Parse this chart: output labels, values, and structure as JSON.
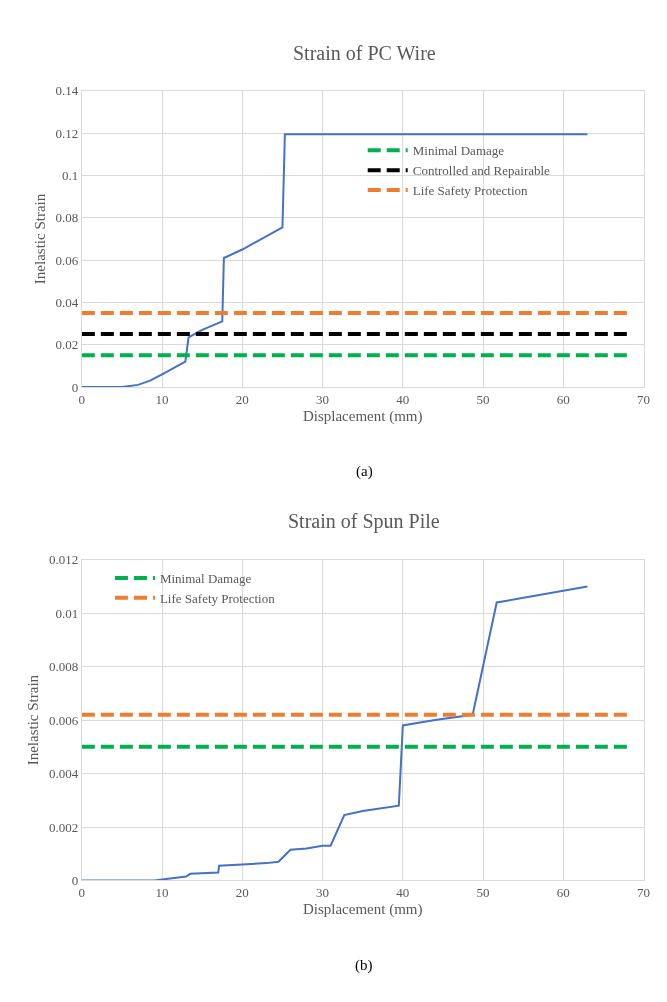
{
  "chart_data": [
    {
      "type": "line",
      "title": "Strain of PC Wire",
      "xlabel": "Displacement (mm)",
      "ylabel": "Inelastic Strain",
      "annotations": [
        "(a)"
      ],
      "xlim": [
        0,
        70
      ],
      "xticks": [
        0,
        10,
        20,
        30,
        40,
        50,
        60,
        70
      ],
      "ylim": [
        0,
        0.14
      ],
      "yticks": [
        0,
        0.02,
        0.04,
        0.06,
        0.08,
        0.1,
        0.12,
        0.14
      ],
      "grid": true,
      "legend": "right",
      "marker": "none",
      "series": [
        {
          "color": "#4472c4",
          "line_style": "solid",
          "x": [
            0,
            5,
            7,
            8.5,
            10,
            12.9,
            13.3,
            15,
            17.5,
            17.7,
            20,
            25,
            25.3,
            63
          ],
          "values": [
            0,
            0,
            0.001,
            0.003,
            0.006,
            0.012,
            0.0235,
            0.027,
            0.031,
            0.061,
            0.065,
            0.0755,
            0.1195,
            0.1195
          ]
        },
        {
          "name": "Minimal Damage",
          "color": "#00b050",
          "line_style": "dashed",
          "x": [
            0,
            68
          ],
          "values": [
            0.015,
            0.015
          ]
        },
        {
          "name": "Controlled and Repairable",
          "color": "#000000",
          "line_style": "dashed",
          "x": [
            0,
            68
          ],
          "values": [
            0.025,
            0.025
          ]
        },
        {
          "name": "Life Safety Protection",
          "color": "#ed7d31",
          "line_style": "dashed",
          "x": [
            0,
            68
          ],
          "values": [
            0.035,
            0.035
          ]
        }
      ]
    },
    {
      "type": "line",
      "title": "Strain of Spun Pile",
      "xlabel": "Displacement (mm)",
      "ylabel": "Inelastic Strain",
      "annotations": [
        "(b)"
      ],
      "xlim": [
        0,
        70
      ],
      "xticks": [
        0,
        10,
        20,
        30,
        40,
        50,
        60,
        70
      ],
      "ylim": [
        0,
        0.012
      ],
      "yticks": [
        0,
        0.002,
        0.004,
        0.006,
        0.008,
        0.01,
        0.012
      ],
      "grid": true,
      "legend": "top left",
      "marker": "none",
      "series": [
        {
          "color": "#4472c4",
          "line_style": "solid",
          "x": [
            0,
            9,
            13,
            13.5,
            17,
            17.1,
            20,
            23,
            24.5,
            26,
            28,
            30,
            31,
            32.7,
            35,
            39.5,
            40,
            44,
            48.7,
            51.7,
            63
          ],
          "values": [
            0,
            0,
            0.00015,
            0.00025,
            0.0003,
            0.00055,
            0.0006,
            0.00065,
            0.0007,
            0.00115,
            0.0012,
            0.0013,
            0.0013,
            0.00245,
            0.0026,
            0.0028,
            0.0058,
            0.006,
            0.0062,
            0.0104,
            0.011
          ]
        },
        {
          "name": "Minimal Damage",
          "color": "#00b050",
          "line_style": "dashed",
          "x": [
            0,
            68
          ],
          "values": [
            0.005,
            0.005
          ]
        },
        {
          "name": "Life Safety Protection",
          "color": "#ed7d31",
          "line_style": "dashed",
          "x": [
            0,
            68
          ],
          "values": [
            0.0062,
            0.0062
          ]
        }
      ]
    }
  ]
}
